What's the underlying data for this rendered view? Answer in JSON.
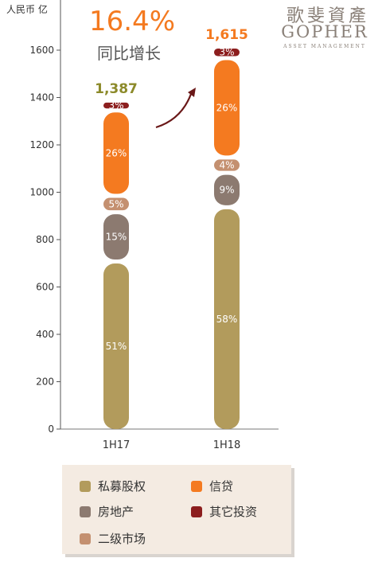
{
  "logo": {
    "cn": "歌斐資產",
    "en": "GOPHER",
    "sub": "ASSET MANAGEMENT"
  },
  "chart_data": {
    "type": "bar",
    "stacked": true,
    "ylabel": "人民币 亿",
    "ylim": [
      0,
      1700
    ],
    "yticks": [
      0,
      200,
      400,
      600,
      800,
      1000,
      1200,
      1400,
      1600
    ],
    "categories": [
      "1H17",
      "1H18"
    ],
    "totals": [
      1387,
      1615
    ],
    "total_labels": [
      "1,387",
      "1,615"
    ],
    "growth_label": "16.4%",
    "growth_caption": "同比增长",
    "series": [
      {
        "name": "私募股权",
        "color": "#b29b5c",
        "percent": [
          51,
          58
        ]
      },
      {
        "name": "房地产",
        "color": "#8c7a70",
        "percent": [
          15,
          9
        ]
      },
      {
        "name": "二级市场",
        "color": "#c49070",
        "percent": [
          5,
          4
        ]
      },
      {
        "name": "信贷",
        "color": "#f47a20",
        "percent": [
          26,
          26
        ]
      },
      {
        "name": "其它投资",
        "color": "#8c1e1e",
        "percent": [
          3,
          3
        ]
      }
    ],
    "legend_placement": "bottom",
    "grid": false
  }
}
